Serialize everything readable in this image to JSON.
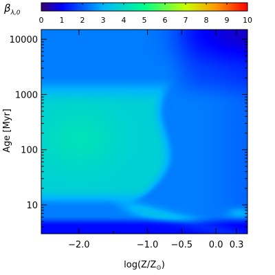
{
  "chart_data": {
    "type": "heatmap",
    "title": "",
    "colorbar": {
      "label": "β",
      "label_subscript": "λ,0",
      "ticks": [
        "0",
        "1",
        "2",
        "3",
        "4",
        "5",
        "6",
        "7",
        "8",
        "9",
        "10"
      ],
      "range": [
        0,
        10
      ],
      "colormap": [
        "#3a0070",
        "#0000ff",
        "#00b4ff",
        "#00ff8c",
        "#c8ff00",
        "#ff9600",
        "#ff0000"
      ],
      "placement": "top"
    },
    "xaxis": {
      "label": "log(Z/Z",
      "label_sub": "⊙",
      "label_end": ")",
      "range": [
        -2.55,
        0.46
      ],
      "ticks": [
        {
          "value": -2.0,
          "label": "−2.0"
        },
        {
          "value": -1.0,
          "label": "−1.0"
        },
        {
          "value": -0.5,
          "label": "−0.5"
        },
        {
          "value": 0.0,
          "label": "0.0"
        },
        {
          "value": 0.3,
          "label": "0.3"
        }
      ],
      "minor_ticks": [
        -1.5
      ]
    },
    "yaxis": {
      "label": "Age [Myr]",
      "scale": "log",
      "range": [
        3.0,
        15000
      ],
      "ticks": [
        {
          "value": 10,
          "label": "10"
        },
        {
          "value": 100,
          "label": "100"
        },
        {
          "value": 1000,
          "label": "1000"
        },
        {
          "value": 10000,
          "label": "10000"
        }
      ]
    },
    "features": [
      {
        "description": "low-metallicity plateau",
        "log_z_range": [
          -2.55,
          -1.3
        ],
        "age_range": [
          12,
          1500
        ],
        "beta": 3.8
      },
      {
        "description": "peak",
        "log_z": -2.0,
        "age": 160,
        "beta": 4.3
      },
      {
        "description": "old / metal-rich corner",
        "log_z": 0.46,
        "age": 15000,
        "beta": 0.6
      },
      {
        "description": "youngest ages",
        "age_range": [
          3,
          5
        ],
        "beta": 0.9
      },
      {
        "description": "metal-rich young tail",
        "log_z": 0.3,
        "age": 7,
        "beta": 2.9
      }
    ]
  }
}
